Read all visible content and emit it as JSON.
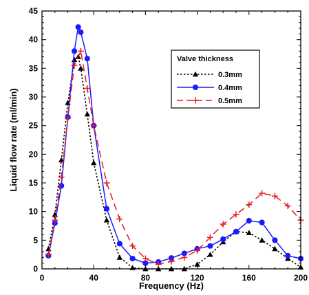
{
  "chart_data": {
    "type": "line",
    "xlabel": "Frequency (Hz)",
    "ylabel": "Liquid flow rate (ml/min)",
    "xlim": [
      0,
      200
    ],
    "ylim": [
      0,
      45
    ],
    "xticks": [
      0,
      40,
      80,
      120,
      160,
      200
    ],
    "yticks": [
      0,
      5,
      10,
      15,
      20,
      25,
      30,
      35,
      40,
      45
    ],
    "grid": false,
    "legend": {
      "title": "Valve thickness",
      "placement": "top-right"
    },
    "series": [
      {
        "name": "0.3mm",
        "color": "#000000",
        "line_style": "dotted",
        "marker": "triangle",
        "x": [
          5,
          10,
          15,
          20,
          25,
          28,
          30,
          35,
          40,
          50,
          60,
          70,
          80,
          90,
          100,
          110,
          120,
          130,
          140,
          150,
          160,
          170,
          180,
          190,
          200
        ],
        "y": [
          3.5,
          9.5,
          19,
          29,
          36.5,
          37,
          35,
          27,
          18.5,
          8.5,
          2,
          0.2,
          0,
          0,
          0,
          0,
          0.8,
          2.5,
          4.7,
          6.5,
          6.3,
          5.0,
          3.5,
          1.8,
          0.3
        ]
      },
      {
        "name": "0.4mm",
        "color": "#1a1aff",
        "line_style": "solid",
        "marker": "circle",
        "x": [
          5,
          10,
          15,
          20,
          25,
          28,
          30,
          35,
          40,
          50,
          60,
          70,
          80,
          90,
          100,
          110,
          120,
          130,
          140,
          150,
          160,
          170,
          180,
          190,
          200
        ],
        "y": [
          2.3,
          8,
          14.5,
          26.5,
          38,
          42.2,
          41.3,
          36.7,
          25,
          10.5,
          4.4,
          1.8,
          1.0,
          1.2,
          1.9,
          2.7,
          3.5,
          4,
          5.2,
          6.5,
          8.4,
          8.1,
          5.0,
          2.3,
          1.8
        ]
      },
      {
        "name": "0.5mm",
        "color": "#e8191f",
        "line_style": "dashed",
        "marker": "plus",
        "x": [
          5,
          10,
          15,
          20,
          25,
          30,
          35,
          40,
          50,
          60,
          70,
          80,
          90,
          100,
          110,
          120,
          130,
          140,
          150,
          160,
          170,
          180,
          190,
          200
        ],
        "y": [
          2.5,
          8.5,
          16,
          26.3,
          35.5,
          38,
          31.5,
          25,
          15,
          8.7,
          4,
          1.8,
          0.8,
          1.3,
          2,
          3.2,
          5.5,
          7.8,
          9.5,
          11.2,
          13.2,
          12.7,
          11,
          8.5
        ]
      }
    ]
  }
}
